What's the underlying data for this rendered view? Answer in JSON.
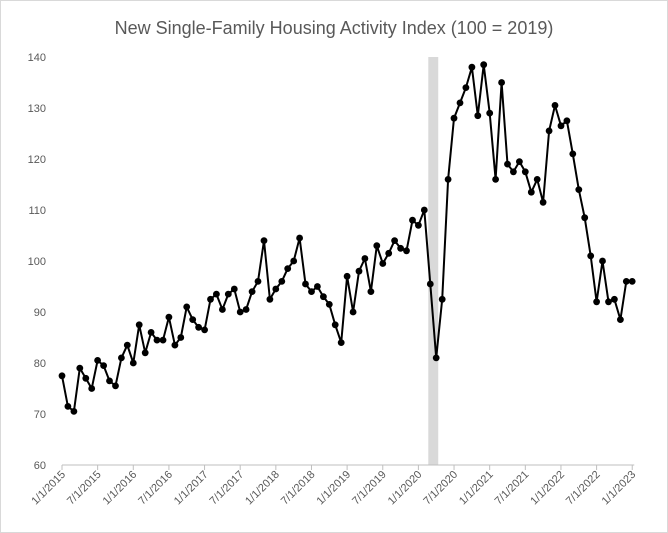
{
  "chart_data": {
    "type": "line",
    "title": "New Single-Family Housing Activity Index (100 = 2019)",
    "xlabel": "",
    "ylabel": "",
    "ylim": [
      60,
      140
    ],
    "yticks": [
      60,
      70,
      80,
      90,
      100,
      110,
      120,
      130,
      140
    ],
    "xticks": [
      "1/1/2015",
      "7/1/2015",
      "1/1/2016",
      "7/1/2016",
      "1/1/2017",
      "7/1/2017",
      "1/1/2018",
      "7/1/2018",
      "1/1/2019",
      "7/1/2019",
      "1/1/2020",
      "7/1/2020",
      "1/1/2021",
      "7/1/2021",
      "1/1/2022",
      "7/1/2022",
      "1/1/2023"
    ],
    "start": "1/1/2015",
    "grid": false,
    "legend": "none",
    "shaded_region": {
      "from": "3/1/2020",
      "to": "4/1/2020",
      "color": "#d9d9d9"
    },
    "line_color": "#000000",
    "series": [
      {
        "values": [
          77.5,
          71.5,
          70.5,
          79,
          77,
          75,
          80.5,
          79.5,
          76.5,
          75.5,
          81,
          83.5,
          80,
          87.5,
          82,
          86,
          84.5,
          84.5,
          89,
          83.5,
          85,
          91,
          88.5,
          87,
          86.5,
          92.5,
          93.5,
          90.5,
          93.5,
          94.5,
          90,
          90.5,
          94,
          96,
          104,
          92.5,
          94.5,
          96,
          98.5,
          100,
          104.5,
          95.5,
          94,
          95,
          93,
          91.5,
          87.5,
          84,
          97,
          90,
          98,
          100.5,
          94,
          103,
          99.5,
          101.5,
          104,
          102.5,
          102,
          108,
          107,
          110,
          95.5,
          81,
          92.5,
          116,
          128,
          131,
          134,
          138,
          128.5,
          138.5,
          129,
          116,
          135,
          119,
          117.5,
          119.5,
          117.5,
          113.5,
          116,
          111.5,
          125.5,
          130.5,
          126.5,
          127.5,
          121,
          114,
          108.5,
          101,
          92,
          100,
          92,
          92.5,
          88.5,
          96,
          96
        ]
      }
    ]
  }
}
